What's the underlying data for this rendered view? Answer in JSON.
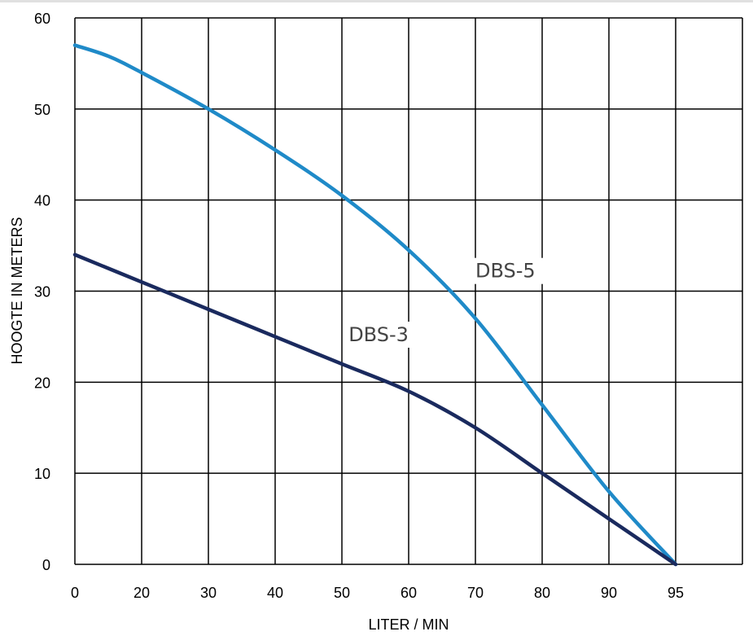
{
  "chart_data": {
    "type": "line",
    "xlabel": "LITER / MIN",
    "ylabel": "HOOGTE IN METERS",
    "x_ticks": [
      "0",
      "20",
      "30",
      "40",
      "50",
      "60",
      "70",
      "80",
      "90",
      "95"
    ],
    "y_ticks": [
      0,
      10,
      20,
      30,
      40,
      50,
      60
    ],
    "ylim": [
      0,
      60
    ],
    "grid": true,
    "legend": "none",
    "series": [
      {
        "name": "DBS-5",
        "color": "#1f8ac8",
        "points": [
          [
            0,
            57
          ],
          [
            10,
            55.8
          ],
          [
            20,
            54
          ],
          [
            30,
            50
          ],
          [
            40,
            45.5
          ],
          [
            50,
            40.5
          ],
          [
            60,
            34.5
          ],
          [
            70,
            27
          ],
          [
            80,
            17.5
          ],
          [
            90,
            8
          ],
          [
            95,
            0
          ]
        ]
      },
      {
        "name": "DBS-3",
        "color": "#1a2a5e",
        "points": [
          [
            0,
            34
          ],
          [
            20,
            31
          ],
          [
            30,
            28
          ],
          [
            40,
            25
          ],
          [
            50,
            22
          ],
          [
            60,
            19
          ],
          [
            70,
            15
          ],
          [
            80,
            10
          ],
          [
            90,
            5
          ],
          [
            95,
            0
          ]
        ]
      }
    ]
  }
}
